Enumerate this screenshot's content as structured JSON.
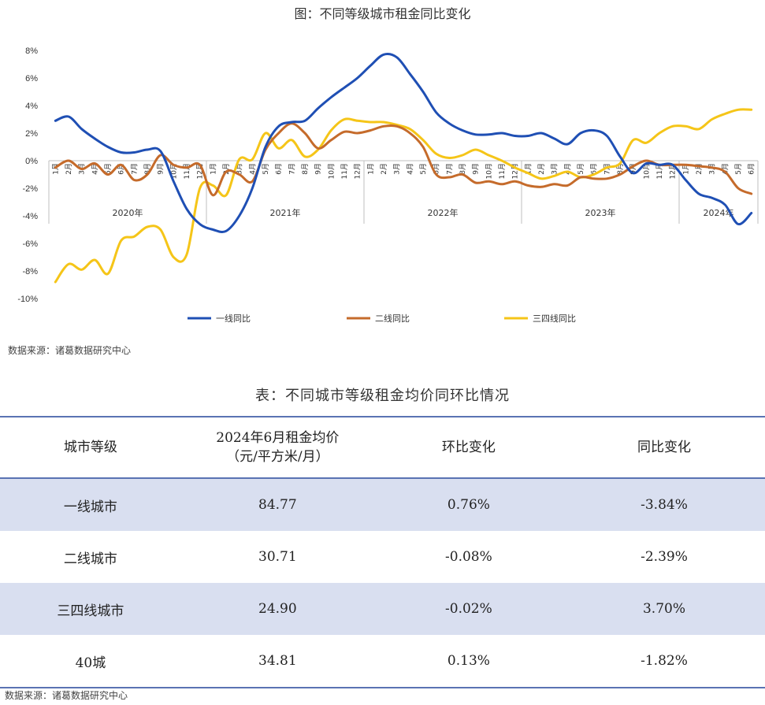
{
  "chart_title": "图：不同等级城市租金同比变化",
  "chart_source": "数据来源：诸葛数据研究中心",
  "table_title": "表：不同城市等级租金均价同环比情况",
  "table_source": "数据来源：诸葛数据研究中心",
  "table": {
    "headers": [
      "城市等级",
      "2024年6月租金均价",
      "（元/平方米/月）",
      "环比变化",
      "同比变化"
    ],
    "rows": [
      {
        "level": "一线城市",
        "price": "84.77",
        "mom": "0.76%",
        "yoy": "-3.84%"
      },
      {
        "level": "二线城市",
        "price": "30.71",
        "mom": "-0.08%",
        "yoy": "-2.39%"
      },
      {
        "level": "三四线城市",
        "price": "24.90",
        "mom": "-0.02%",
        "yoy": "3.70%"
      },
      {
        "level": "40城",
        "price": "34.81",
        "mom": "0.13%",
        "yoy": "-1.82%"
      }
    ]
  },
  "chart_data": {
    "type": "line",
    "title": "图：不同等级城市租金同比变化",
    "ylim": [
      -10,
      8
    ],
    "y_ticks": [
      "8%",
      "6%",
      "4%",
      "2%",
      "0%",
      "-2%",
      "-4%",
      "-6%",
      "-8%",
      "-10%"
    ],
    "grid": false,
    "legend_position": "bottom",
    "month_labels": [
      "1月",
      "2月",
      "3月",
      "4月",
      "5月",
      "6月",
      "7月",
      "8月",
      "9月",
      "10月",
      "11月",
      "12月",
      "1月",
      "2月",
      "3月",
      "4月",
      "5月",
      "6月",
      "7月",
      "8月",
      "9月",
      "10月",
      "11月",
      "12月",
      "1月",
      "2月",
      "3月",
      "4月",
      "5月",
      "6月",
      "7月",
      "8月",
      "9月",
      "10月",
      "11月",
      "12月",
      "1月",
      "2月",
      "3月",
      "4月",
      "5月",
      "6月",
      "7月",
      "8月",
      "9月",
      "10月",
      "11月",
      "12月",
      "1月",
      "2月",
      "3月",
      "4月",
      "5月",
      "6月"
    ],
    "year_labels": [
      "2020年",
      "2021年",
      "2022年",
      "2023年",
      "2024年"
    ],
    "series": [
      {
        "name": "一线同比",
        "color": "#1f4fb4",
        "values": [
          2.9,
          3.2,
          2.3,
          1.6,
          1.0,
          0.6,
          0.6,
          0.8,
          0.7,
          -1.5,
          -3.5,
          -4.6,
          -5.0,
          -5.1,
          -4.0,
          -2.0,
          1.0,
          2.5,
          2.8,
          2.9,
          3.8,
          4.6,
          5.3,
          6.0,
          6.9,
          7.7,
          7.5,
          6.3,
          5.0,
          3.5,
          2.7,
          2.2,
          1.9,
          1.9,
          2.0,
          1.8,
          1.8,
          2.0,
          1.6,
          1.2,
          2.0,
          2.2,
          1.8,
          0.3,
          -0.9,
          -0.2,
          -0.3,
          -0.3,
          -1.4,
          -2.4,
          -2.7,
          -3.2,
          -4.6,
          -3.8
        ]
      },
      {
        "name": "二线同比",
        "color": "#c56b2b",
        "values": [
          -0.5,
          0.0,
          -0.6,
          -0.2,
          -1.0,
          -0.3,
          -1.4,
          -1.0,
          0.4,
          -0.3,
          -0.5,
          -0.3,
          -2.5,
          -0.8,
          -1.0,
          -1.5,
          0.8,
          2.0,
          2.7,
          2.0,
          0.9,
          1.5,
          2.1,
          2.0,
          2.2,
          2.5,
          2.5,
          2.0,
          1.0,
          -1.0,
          -1.2,
          -1.0,
          -1.6,
          -1.5,
          -1.7,
          -1.5,
          -1.8,
          -1.9,
          -1.7,
          -1.8,
          -1.2,
          -1.3,
          -1.3,
          -1.0,
          -0.4,
          0.0,
          -0.3,
          -0.3,
          -0.3,
          -0.4,
          -0.5,
          -0.8,
          -2.0,
          -2.4
        ]
      },
      {
        "name": "三四线同比",
        "color": "#f5c518",
        "values": [
          -8.8,
          -7.5,
          -7.9,
          -7.2,
          -8.2,
          -5.8,
          -5.5,
          -4.8,
          -5.0,
          -7.0,
          -6.8,
          -2.0,
          -1.8,
          -2.5,
          0.1,
          0.1,
          2.0,
          0.9,
          1.5,
          0.3,
          0.8,
          2.2,
          3.0,
          2.9,
          2.8,
          2.8,
          2.6,
          2.3,
          1.5,
          0.5,
          0.2,
          0.4,
          0.8,
          0.4,
          0.0,
          -0.5,
          -0.9,
          -1.3,
          -1.1,
          -0.8,
          -1.2,
          -1.0,
          -0.5,
          -0.2,
          1.5,
          1.3,
          2.0,
          2.5,
          2.5,
          2.3,
          3.0,
          3.4,
          3.7,
          3.7
        ]
      }
    ]
  }
}
